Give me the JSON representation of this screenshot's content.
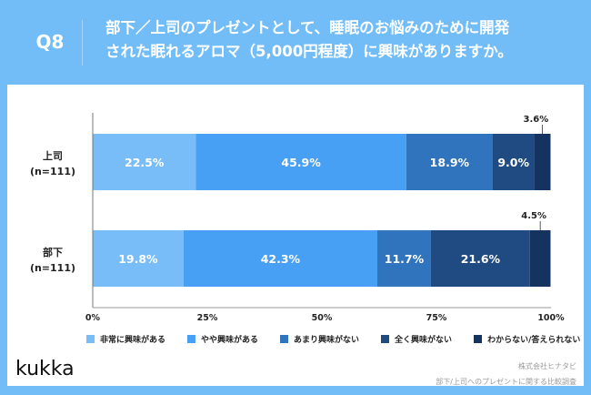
{
  "header": {
    "q_label": "Q8",
    "title_line1": "部下／上司のプレゼントとして、睡眠のお悩みのために開発",
    "title_line2": "された眠れるアロマ（5,000円程度）に興味がありますか。"
  },
  "chart_data": {
    "type": "bar",
    "orientation": "horizontal",
    "stacked": true,
    "categories": [
      {
        "name": "上司",
        "n": "(n=111)"
      },
      {
        "name": "部下",
        "n": "(n=111)"
      }
    ],
    "series": [
      {
        "name": "非常に興味がある",
        "color": "#78bdf8",
        "values": [
          22.5,
          19.8
        ]
      },
      {
        "name": "やや興味がある",
        "color": "#48a0f5",
        "values": [
          45.9,
          42.3
        ]
      },
      {
        "name": "あまり興味がない",
        "color": "#2f74bd",
        "values": [
          18.9,
          11.7
        ]
      },
      {
        "name": "全く興味がない",
        "color": "#1f4b82",
        "values": [
          9.0,
          21.6
        ]
      },
      {
        "name": "わからない/答えられない",
        "color": "#14335f",
        "values": [
          3.6,
          4.5
        ]
      }
    ],
    "xticks": [
      "0%",
      "25%",
      "50%",
      "75%",
      "100%"
    ],
    "xlim": [
      0,
      100
    ],
    "legend": "bottom"
  },
  "footer": {
    "logo": "kukka",
    "company": "株式会社ヒナタビ",
    "survey": "部下/上司へのプレゼントに関する比較調査"
  }
}
